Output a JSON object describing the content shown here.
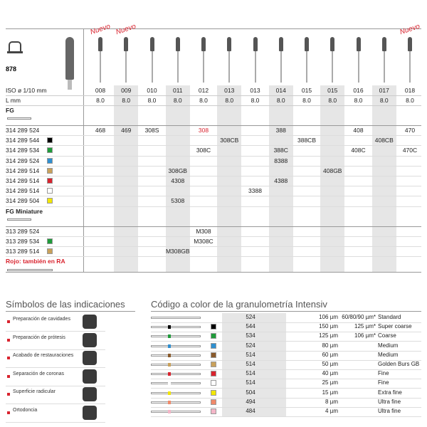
{
  "product": {
    "name": "878"
  },
  "columns": {
    "nuevo": [
      "Nuevo",
      "Nuevo",
      null,
      null,
      null,
      null,
      null,
      null,
      null,
      null,
      null,
      null,
      "Nuevo"
    ],
    "iso_label": "ISO ø 1/10 mm",
    "iso": [
      "008",
      "009",
      "010",
      "011",
      "012",
      "013",
      "013",
      "014",
      "015",
      "015",
      "016",
      "017",
      "018"
    ],
    "length_label": "L mm",
    "length": [
      "8.0",
      "8.0",
      "8.0",
      "8.0",
      "8.0",
      "8.0",
      "8.0",
      "8.0",
      "8.0",
      "8.0",
      "8.0",
      "8.0",
      "8.0"
    ]
  },
  "groups": [
    {
      "title": "FG",
      "rows": [
        {
          "code": "314 289 524",
          "cells": [
            "468",
            "469",
            "308S",
            null,
            {
              "text": "308",
              "color": "#d9232e"
            },
            null,
            null,
            "388",
            null,
            null,
            "408",
            null,
            "470"
          ]
        },
        {
          "code": "314 289 544",
          "color": "#000000",
          "cells": [
            null,
            null,
            null,
            null,
            null,
            "308CB",
            null,
            null,
            "388CB",
            null,
            null,
            "408CB",
            null
          ]
        },
        {
          "code": "314 289 534",
          "color": "#1f9b3a",
          "cells": [
            null,
            null,
            null,
            null,
            "308C",
            null,
            null,
            "388C",
            null,
            null,
            "408C",
            null,
            "470C"
          ]
        },
        {
          "code": "314 289 524",
          "color": "#2f8fd0",
          "cells": [
            null,
            null,
            null,
            null,
            null,
            null,
            null,
            "8388",
            null,
            null,
            null,
            null,
            null
          ]
        },
        {
          "code": "314 289 514",
          "color": "#c9a15a",
          "cells": [
            null,
            null,
            null,
            "308GB",
            null,
            null,
            null,
            null,
            null,
            "408GB",
            null,
            null,
            null
          ]
        },
        {
          "code": "314 289 514",
          "color": "#d9232e",
          "cells": [
            null,
            null,
            null,
            "4308",
            null,
            null,
            null,
            "4388",
            null,
            null,
            null,
            null,
            null
          ]
        },
        {
          "code": "314 289 514",
          "color": "#ffffff",
          "cells": [
            null,
            null,
            null,
            null,
            null,
            null,
            "3388",
            null,
            null,
            null,
            null,
            null,
            null
          ]
        },
        {
          "code": "314 289 504",
          "color": "#f2e600",
          "cells": [
            null,
            null,
            null,
            "5308",
            null,
            null,
            null,
            null,
            null,
            null,
            null,
            null,
            null
          ]
        }
      ]
    },
    {
      "title": "FG Miniature",
      "rows": [
        {
          "code": "313 289 524",
          "cells": [
            null,
            null,
            null,
            null,
            "M308",
            null,
            null,
            null,
            null,
            null,
            null,
            null,
            null
          ]
        },
        {
          "code": "313 289 534",
          "color": "#1f9b3a",
          "cells": [
            null,
            null,
            null,
            null,
            "M308C",
            null,
            null,
            null,
            null,
            null,
            null,
            null,
            null
          ]
        },
        {
          "code": "313 289 514",
          "color": "#c9a15a",
          "cells": [
            null,
            null,
            null,
            "M308GB",
            null,
            null,
            null,
            null,
            null,
            null,
            null,
            null,
            null
          ]
        }
      ]
    }
  ],
  "note": "Rojo: también en RA",
  "indications": {
    "title": "Símbolos de las indicaciones",
    "items": [
      "Preparación de cavidades",
      "Preparación de prótesis",
      "Acabado de restauraciones",
      "Separación de coronas",
      "Superficie radicular",
      "Ortodoncia"
    ]
  },
  "grit": {
    "title": "Código a color de la granulometría Intensiv",
    "rows": [
      {
        "code": "524",
        "size": "106 µm",
        "extra": "60/80/90 µm*",
        "grade": "Standard"
      },
      {
        "code": "544",
        "color": "#000000",
        "size": "150 µm",
        "extra": "125 µm*",
        "grade": "Super coarse"
      },
      {
        "code": "534",
        "color": "#1f9b3a",
        "size": "125 µm",
        "extra": "106 µm*",
        "grade": "Coarse"
      },
      {
        "code": "524",
        "color": "#2f8fd0",
        "size": "80 µm",
        "grade": "Medium"
      },
      {
        "code": "514",
        "color": "#8a5a2b",
        "size": "60 µm",
        "grade": "Medium"
      },
      {
        "code": "514",
        "color": "#c9a15a",
        "size": "50 µm",
        "grade": "Golden Burs GB"
      },
      {
        "code": "514",
        "color": "#d9232e",
        "size": "40 µm",
        "grade": "Fine"
      },
      {
        "code": "514",
        "color": "#ffffff",
        "size": "25 µm",
        "grade": "Fine"
      },
      {
        "code": "504",
        "color": "#f2e600",
        "size": "15 µm",
        "grade": "Extra fine"
      },
      {
        "code": "494",
        "color": "#f08a6a",
        "size": "8 µm",
        "grade": "Ultra fine"
      },
      {
        "code": "484",
        "color": "#f4b6c8",
        "size": "4 µm",
        "grade": "Ultra fine"
      }
    ]
  }
}
